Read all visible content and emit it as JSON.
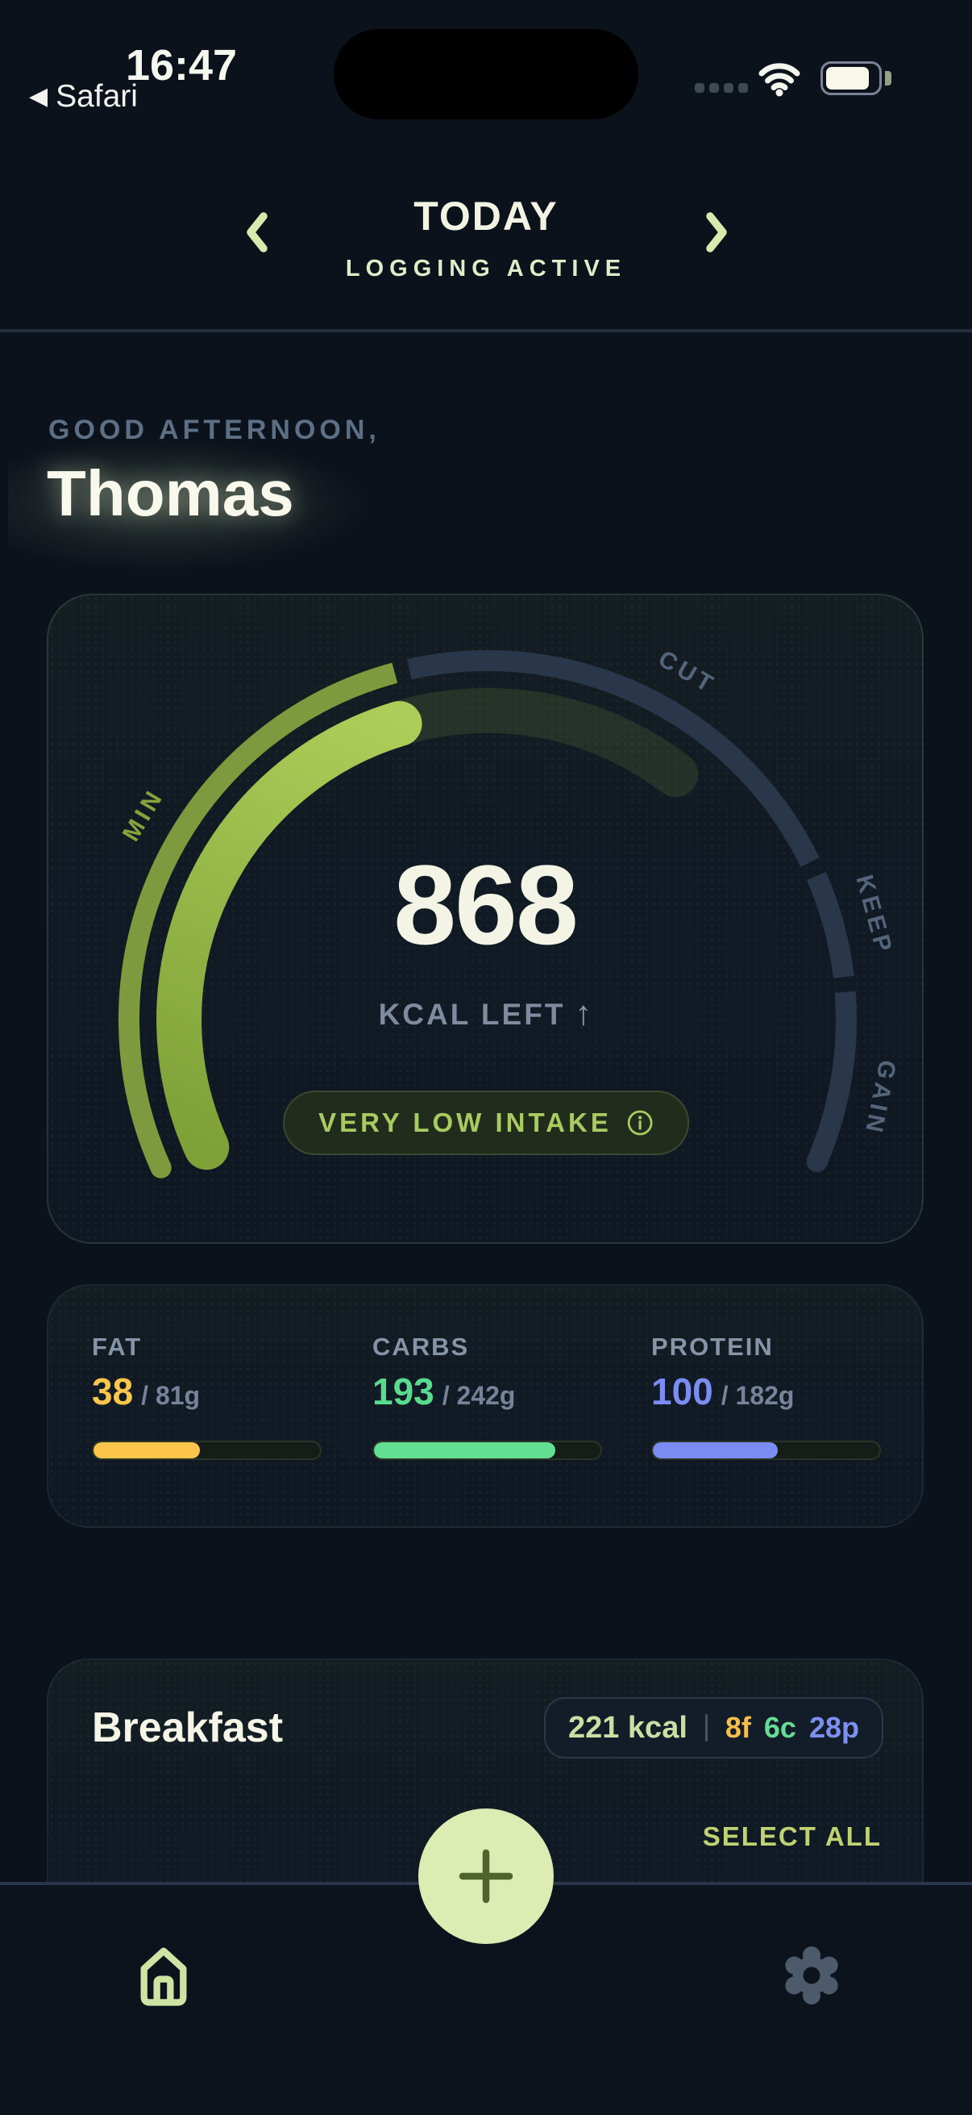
{
  "status_bar": {
    "time": "16:47",
    "back_icon": "◀",
    "back_label": "Safari",
    "battery": {
      "fill_pct": 86
    }
  },
  "header": {
    "title": "TODAY",
    "subtitle": "LOGGING ACTIVE"
  },
  "greeting": {
    "salutation": "GOOD AFTERNOON,",
    "name": "Thomas"
  },
  "gauge": {
    "value": "868",
    "unit_label": "KCAL LEFT",
    "arrow": "↑",
    "status": "VERY LOW INTAKE",
    "zone_min": "MIN",
    "zone_cut": "CUT",
    "zone_keep": "KEEP",
    "zone_gain": "GAIN",
    "progress_color": "#a9c954",
    "track_color": "#2a3649"
  },
  "macros": {
    "fat": {
      "label": "FAT",
      "value": "38",
      "goal": "/ 81g",
      "pct": 47,
      "color": "#fdc64b"
    },
    "carbs": {
      "label": "CARBS",
      "value": "193",
      "goal": "/ 242g",
      "pct": 80,
      "color": "#62df92"
    },
    "protein": {
      "label": "PROTEIN",
      "value": "100",
      "goal": "/ 182g",
      "pct": 55,
      "color": "#7b8cf4"
    }
  },
  "meal": {
    "title": "Breakfast",
    "summary_kcal": "221 kcal",
    "summary_fat": "8f",
    "summary_carbs": "6c",
    "summary_protein": "28p",
    "select_all": "SELECT ALL"
  },
  "colors": {
    "background": "#0b121b",
    "accent_green": "#a9c954",
    "pale_green": "#dcecb3",
    "cream": "#f3f4e5"
  }
}
